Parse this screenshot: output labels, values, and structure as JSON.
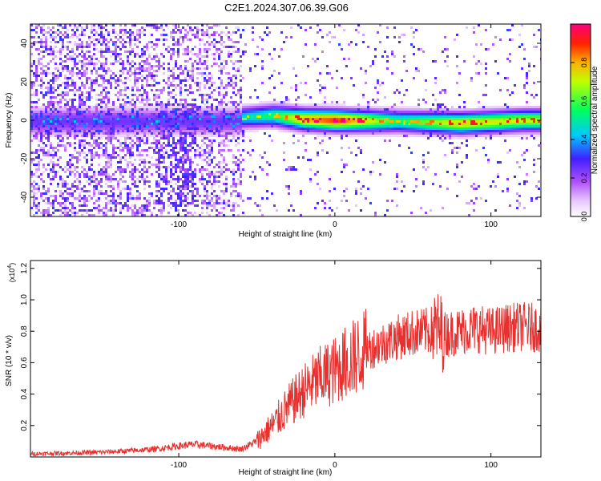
{
  "title": "C2E1.2024.307.06.39.G06",
  "chart_data": [
    {
      "type": "heatmap",
      "xlabel": "Height of straight line (km)",
      "ylabel": "Frequency (Hz)",
      "xlim": [
        -195,
        132
      ],
      "ylim": [
        -50,
        50
      ],
      "xticks": [
        -100,
        0,
        100
      ],
      "yticks": [
        -40,
        -20,
        0,
        20,
        40
      ],
      "colorbar": {
        "label": "Normalized spectral amplitude",
        "range": [
          0,
          1
        ],
        "ticks": [
          "0.0",
          "0.2",
          "0.4",
          "0.6",
          "0.8"
        ],
        "tick_values": [
          0,
          0.2,
          0.4,
          0.6,
          0.8
        ]
      },
      "ridge": {
        "description_points": [
          {
            "x": -60,
            "y": 2,
            "amp": 0.45
          },
          {
            "x": -40,
            "y": 3,
            "amp": 0.55
          },
          {
            "x": -20,
            "y": 1,
            "amp": 0.8
          },
          {
            "x": 0,
            "y": 0.5,
            "amp": 0.9
          },
          {
            "x": 40,
            "y": 0,
            "amp": 0.55
          },
          {
            "x": 80,
            "y": -1,
            "amp": 0.75
          },
          {
            "x": 120,
            "y": 0.5,
            "amp": 0.7
          }
        ]
      }
    },
    {
      "type": "line",
      "xlabel": "Height of straight line (km)",
      "ylabel": "SNR (10 * v/v)",
      "y_multiplier": "(x10",
      "y_multiplier_exp": "4",
      "y_multiplier_close": ")",
      "xlim": [
        -195,
        132
      ],
      "ylim": [
        0,
        1.25
      ],
      "xticks": [
        -100,
        0,
        100
      ],
      "yticks": [
        "0.2",
        "0.4",
        "0.6",
        "0.8",
        "1.0",
        "1.2"
      ],
      "ytick_values": [
        0.2,
        0.4,
        0.6,
        0.8,
        1.0,
        1.2
      ],
      "series": [
        {
          "color": "#e8302e",
          "x": [
            -195,
            -170,
            -150,
            -130,
            -115,
            -100,
            -90,
            -80,
            -70,
            -60,
            -50,
            -40,
            -30,
            -20,
            -10,
            0,
            10,
            20,
            30,
            40,
            50,
            60,
            65,
            70,
            80,
            90,
            100,
            110,
            120,
            132
          ],
          "y": [
            0.02,
            0.025,
            0.03,
            0.04,
            0.05,
            0.07,
            0.08,
            0.07,
            0.06,
            0.05,
            0.1,
            0.2,
            0.32,
            0.42,
            0.5,
            0.55,
            0.62,
            0.68,
            0.72,
            0.76,
            0.79,
            0.8,
            0.82,
            0.78,
            0.8,
            0.82,
            0.8,
            0.82,
            0.83,
            0.82
          ]
        }
      ]
    }
  ]
}
